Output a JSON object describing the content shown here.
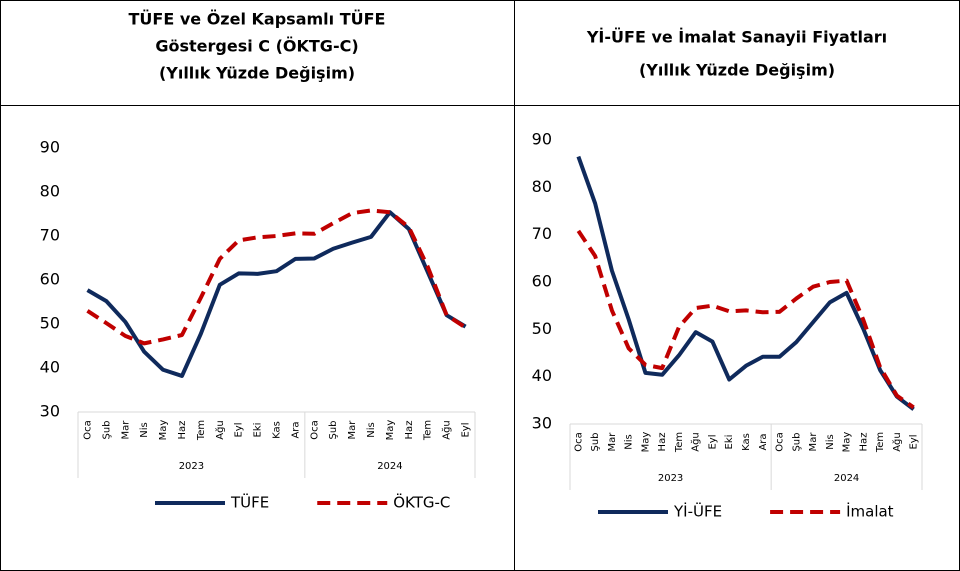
{
  "chart_data": [
    {
      "type": "line",
      "title_lines": [
        "TÜFE ve Özel Kapsamlı TÜFE",
        "Göstergesi C (ÖKTG-C)",
        "(Yıllık Yüzde Değişim)"
      ],
      "categories": [
        "Oca",
        "Şub",
        "Mar",
        "Nis",
        "May",
        "Haz",
        "Tem",
        "Ağu",
        "Eyl",
        "Eki",
        "Kas",
        "Ara",
        "Oca",
        "Şub",
        "Mar",
        "Nis",
        "May",
        "Haz",
        "Tem",
        "Ağu",
        "Eyl"
      ],
      "groups": [
        {
          "label": "2023",
          "count": 12
        },
        {
          "label": "2024",
          "count": 9
        }
      ],
      "series": [
        {
          "name": "TÜFE",
          "color": "#0f2a5c",
          "dashed": false,
          "values": [
            57.7,
            55.2,
            50.5,
            43.7,
            39.6,
            38.2,
            47.8,
            58.9,
            61.5,
            61.4,
            62.0,
            64.8,
            64.9,
            67.1,
            68.5,
            69.8,
            75.4,
            71.6,
            61.8,
            52.0,
            49.4
          ]
        },
        {
          "name": "ÖKTG-C",
          "color": "#c00000",
          "dashed": true,
          "values": [
            53.0,
            50.2,
            47.3,
            45.6,
            46.5,
            47.5,
            56.0,
            64.8,
            69.0,
            69.7,
            70.0,
            70.6,
            70.5,
            72.9,
            75.2,
            75.8,
            75.4,
            72.0,
            63.0,
            52.0,
            49.2
          ]
        }
      ],
      "ylim": [
        30,
        90
      ],
      "yticks": [
        30,
        40,
        50,
        60,
        70,
        80,
        90
      ],
      "grid": false
    },
    {
      "type": "line",
      "title_lines": [
        "Yİ-ÜFE ve İmalat Sanayii Fiyatları",
        "(Yıllık Yüzde Değişim)"
      ],
      "categories": [
        "Oca",
        "Şub",
        "Mar",
        "Nis",
        "May",
        "Haz",
        "Tem",
        "Ağu",
        "Eyl",
        "Eki",
        "Kas",
        "Ara",
        "Oca",
        "Şub",
        "Mar",
        "Nis",
        "May",
        "Haz",
        "Tem",
        "Ağu",
        "Eyl"
      ],
      "groups": [
        {
          "label": "2023",
          "count": 12
        },
        {
          "label": "2024",
          "count": 9
        }
      ],
      "series": [
        {
          "name": "Yİ-ÜFE",
          "color": "#0f2a5c",
          "dashed": false,
          "values": [
            86.5,
            76.6,
            62.4,
            52.1,
            40.8,
            40.4,
            44.5,
            49.4,
            47.4,
            39.4,
            42.3,
            44.2,
            44.2,
            47.3,
            51.5,
            55.7,
            57.7,
            50.1,
            41.4,
            35.8,
            33.1
          ]
        },
        {
          "name": "İmalat",
          "color": "#c00000",
          "dashed": true,
          "values": [
            70.8,
            65.5,
            54.0,
            46.0,
            42.5,
            41.8,
            50.5,
            54.5,
            55.0,
            53.8,
            54.0,
            53.6,
            53.7,
            56.5,
            59.0,
            60.0,
            60.3,
            52.0,
            42.0,
            36.0,
            33.5
          ]
        }
      ],
      "ylim": [
        30,
        90
      ],
      "yticks": [
        30,
        40,
        50,
        60,
        70,
        80,
        90
      ],
      "grid": false
    }
  ]
}
